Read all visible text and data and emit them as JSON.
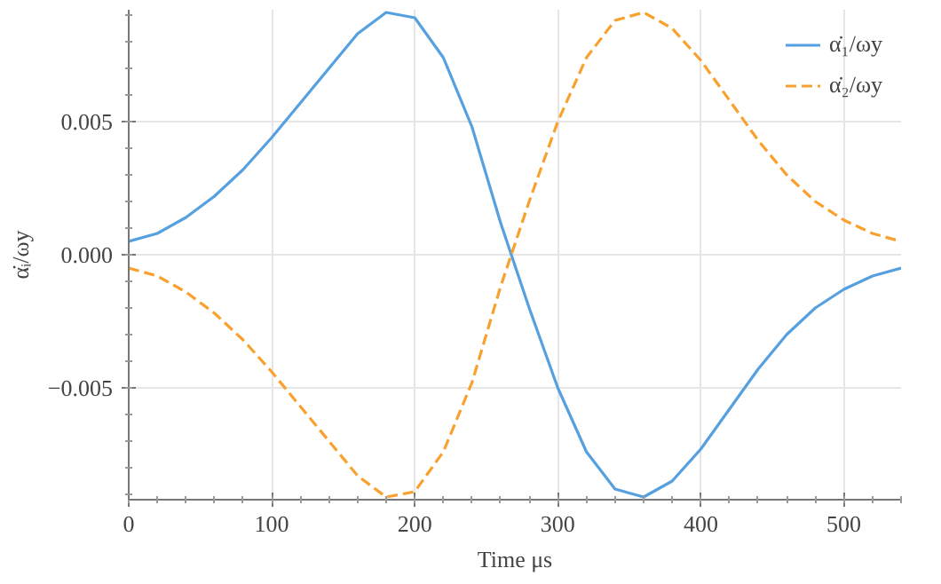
{
  "chart_data": {
    "type": "line",
    "xlabel": "Time μs",
    "ylabel": "α̇ᵢ/ωy",
    "x": [
      0,
      20,
      40,
      60,
      80,
      100,
      120,
      140,
      160,
      180,
      200,
      220,
      240,
      260,
      280,
      300,
      320,
      340,
      360,
      380,
      400,
      420,
      440,
      460,
      480,
      500,
      520,
      540
    ],
    "series": [
      {
        "name": "α̇₁/ωy",
        "color": "#56a0e0",
        "line_style": "solid",
        "values": [
          0.0005,
          0.0008,
          0.0014,
          0.0022,
          0.0032,
          0.0044,
          0.0057,
          0.007,
          0.0083,
          0.0091,
          0.0089,
          0.0074,
          0.0048,
          0.0012,
          -0.002,
          -0.005,
          -0.0074,
          -0.0088,
          -0.0091,
          -0.0085,
          -0.0073,
          -0.0058,
          -0.0043,
          -0.003,
          -0.002,
          -0.0013,
          -0.0008,
          -0.0005
        ]
      },
      {
        "name": "α̇₂/ωy",
        "color": "#f8a12f",
        "line_style": "dashed",
        "values": [
          -0.0005,
          -0.0008,
          -0.0014,
          -0.0022,
          -0.0032,
          -0.0044,
          -0.0057,
          -0.007,
          -0.0083,
          -0.0091,
          -0.0089,
          -0.0074,
          -0.0048,
          -0.0012,
          0.002,
          0.005,
          0.0074,
          0.0088,
          0.0091,
          0.0085,
          0.0073,
          0.0058,
          0.0043,
          0.003,
          0.002,
          0.0013,
          0.0008,
          0.0005
        ]
      }
    ],
    "xlim": [
      0,
      540
    ],
    "ylim": [
      -0.0092,
      0.0092
    ],
    "xticks": [
      0,
      100,
      200,
      300,
      400,
      500
    ],
    "yticks": [
      {
        "value": -0.005,
        "label": "−0.005"
      },
      {
        "value": 0,
        "label": "0.000"
      },
      {
        "value": 0.005,
        "label": "0.005"
      }
    ],
    "grid": true,
    "legend": "top right"
  }
}
